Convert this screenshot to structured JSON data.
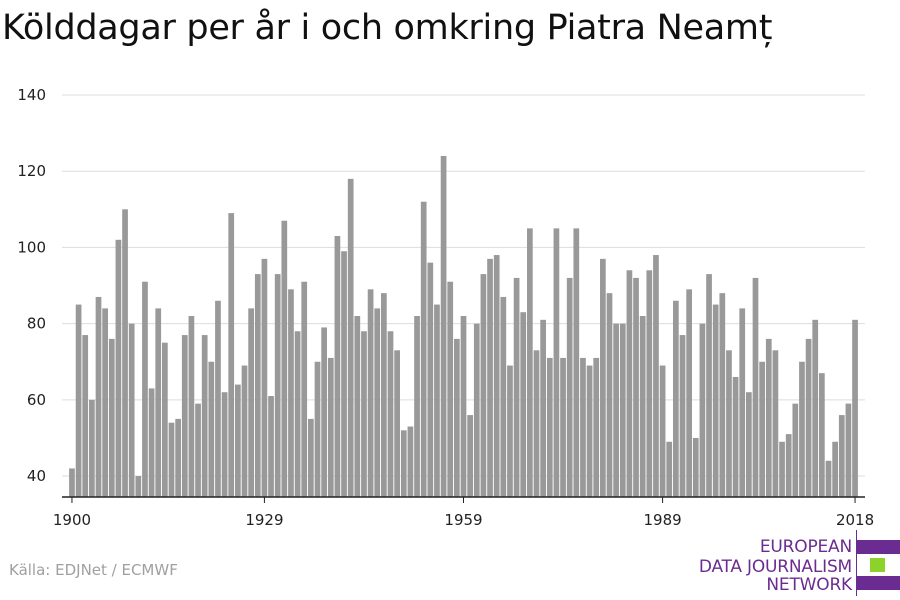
{
  "chart_data": {
    "type": "bar",
    "title": "Kölddagar per år i och omkring Piatra Neamț",
    "xlabel": "",
    "ylabel": "",
    "x_ticks": [
      "1900",
      "1929",
      "1959",
      "1989",
      "2018"
    ],
    "y_ticks": [
      40,
      60,
      80,
      100,
      120,
      140
    ],
    "ylim": [
      34.5,
      140
    ],
    "xlim": [
      1899,
      2019
    ],
    "grid": true,
    "bar_color": "#999999",
    "x_start": 1900,
    "values": [
      42,
      85,
      77,
      60,
      87,
      84,
      76,
      102,
      110,
      80,
      40,
      91,
      63,
      84,
      75,
      54,
      55,
      77,
      82,
      59,
      77,
      70,
      86,
      62,
      109,
      64,
      69,
      84,
      93,
      97,
      61,
      93,
      107,
      89,
      78,
      91,
      55,
      70,
      79,
      71,
      103,
      99,
      118,
      82,
      78,
      89,
      84,
      88,
      78,
      73,
      52,
      53,
      82,
      112,
      96,
      85,
      124,
      91,
      76,
      82,
      56,
      80,
      93,
      97,
      98,
      87,
      69,
      92,
      83,
      105,
      73,
      81,
      71,
      105,
      71,
      92,
      105,
      71,
      69,
      71,
      97,
      88,
      80,
      80,
      94,
      92,
      82,
      94,
      98,
      69,
      49,
      86,
      77,
      89,
      50,
      80,
      93,
      85,
      88,
      73,
      66,
      84,
      62,
      92,
      70,
      76,
      73,
      49,
      51,
      59,
      70,
      76,
      81,
      67,
      44,
      49,
      56,
      59,
      81
    ]
  },
  "source": "Källa: EDJNet / ECMWF",
  "logo": {
    "lines": [
      "EUROPEAN",
      "DATA JOURNALISM",
      "NETWORK"
    ],
    "colors": {
      "purple": "#6b2c91",
      "green": "#8cd22a"
    }
  }
}
